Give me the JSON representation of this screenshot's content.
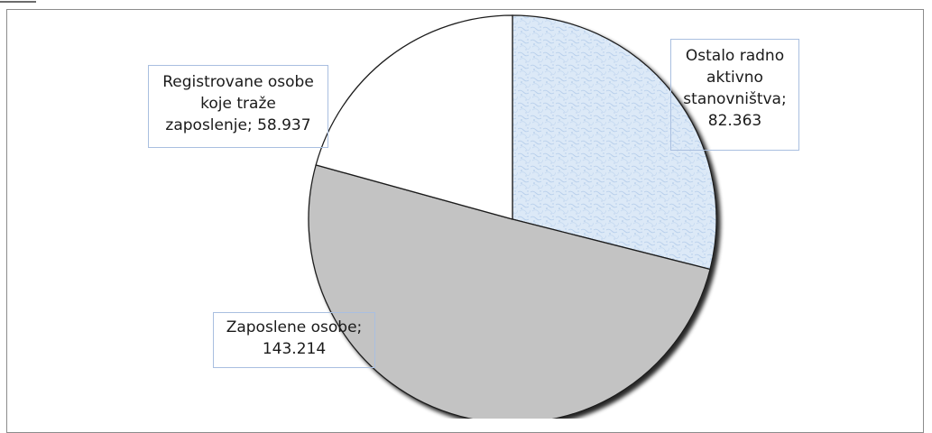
{
  "chart_data": {
    "type": "pie",
    "slices": [
      {
        "label_lines": [
          "Ostalo radno",
          "aktivno",
          "stanovništva;",
          "82.363"
        ],
        "name": "Ostalo radno aktivno stanovništva",
        "value": 82363,
        "value_label": "82.363",
        "fill": "#dce9f7",
        "pattern": "light-blue-texture"
      },
      {
        "label_lines": [
          "Zaposlene osobe;",
          "143.214"
        ],
        "name": "Zaposlene osobe",
        "value": 143214,
        "value_label": "143.214",
        "fill": "#c3c3c3",
        "pattern": "solid"
      },
      {
        "label_lines": [
          "Registrovane osobe",
          "koje traže",
          "zaposlenje; 58.937"
        ],
        "name": "Registrovane osobe koje traže zaposlenje",
        "value": 58937,
        "value_label": "58.937",
        "fill": "#ffffff",
        "pattern": "solid"
      }
    ],
    "start_angle": "12 o'clock",
    "direction": "clockwise",
    "shadow": true,
    "legend": "none",
    "data_labels": "callouts"
  },
  "colors": {
    "outline": "#1f1f1f",
    "callout_border": "#a9bfe0",
    "frame_border": "#8c8c8c"
  }
}
